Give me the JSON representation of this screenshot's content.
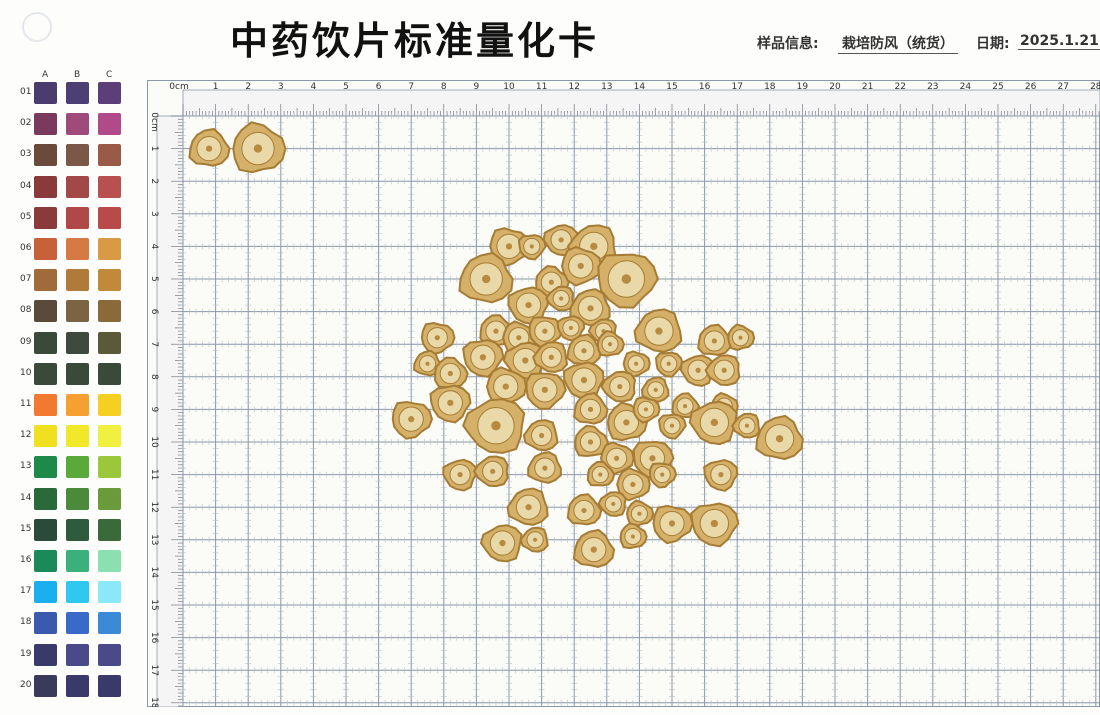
{
  "header": {
    "title": "中药饮片标准量化卡",
    "info_label": "样品信息:",
    "info_value": "栽培防风（统货）",
    "date_label": "日期:",
    "date_value": "2025.1.21"
  },
  "color_card": {
    "columns": [
      "A",
      "B",
      "C"
    ],
    "rows": [
      {
        "num": "01",
        "colors": [
          "#4a3d6e",
          "#4b3f74",
          "#5c3f78"
        ]
      },
      {
        "num": "02",
        "colors": [
          "#7a3a5e",
          "#a04a7c",
          "#b04a88"
        ]
      },
      {
        "num": "03",
        "colors": [
          "#6a4a3a",
          "#7a5848",
          "#9a5a48"
        ]
      },
      {
        "num": "04",
        "colors": [
          "#8a3a3a",
          "#a24848",
          "#b85050"
        ]
      },
      {
        "num": "05",
        "colors": [
          "#8a3a3a",
          "#b04848",
          "#b84a4a"
        ]
      },
      {
        "num": "06",
        "colors": [
          "#c8603a",
          "#d67a44",
          "#d89a44"
        ]
      },
      {
        "num": "07",
        "colors": [
          "#a06a3a",
          "#b07a3a",
          "#c08a3a"
        ]
      },
      {
        "num": "08",
        "colors": [
          "#5a4a3a",
          "#7a6444",
          "#8a6a3a"
        ]
      },
      {
        "num": "09",
        "colors": [
          "#3a4a3a",
          "#3e4a3e",
          "#5a5a3a"
        ]
      },
      {
        "num": "10",
        "colors": [
          "#3a4a3a",
          "#3a4a3a",
          "#3a4a3a"
        ]
      },
      {
        "num": "11",
        "colors": [
          "#f27a30",
          "#f5a030",
          "#f5d020"
        ]
      },
      {
        "num": "12",
        "colors": [
          "#f0e020",
          "#f0e828",
          "#f0f040"
        ]
      },
      {
        "num": "13",
        "colors": [
          "#1e8a4a",
          "#5aaa3a",
          "#9ac83a"
        ]
      },
      {
        "num": "14",
        "colors": [
          "#2a6a3a",
          "#4a8a3a",
          "#6a9a3a"
        ]
      },
      {
        "num": "15",
        "colors": [
          "#2a4a3a",
          "#2e5a3e",
          "#3a6a3a"
        ]
      },
      {
        "num": "16",
        "colors": [
          "#1a8a5a",
          "#3ab07a",
          "#8ae0b0"
        ]
      },
      {
        "num": "17",
        "colors": [
          "#1ab0f0",
          "#30c8f0",
          "#8ae8f8"
        ]
      },
      {
        "num": "18",
        "colors": [
          "#3a5ab0",
          "#3a6ac8",
          "#3a8ad8"
        ]
      },
      {
        "num": "19",
        "colors": [
          "#3a3a6a",
          "#4a4a8a",
          "#4a4a8a"
        ]
      },
      {
        "num": "20",
        "colors": [
          "#3a3a5a",
          "#3a3a6a",
          "#3a3a6a"
        ]
      }
    ]
  },
  "ruler": {
    "x_labels": [
      "0cm",
      "1",
      "2",
      "3",
      "4",
      "5",
      "6",
      "7",
      "8",
      "9",
      "10",
      "11",
      "12",
      "13",
      "14",
      "15",
      "16",
      "17",
      "18",
      "19",
      "20",
      "21",
      "22",
      "23",
      "24",
      "25",
      "26",
      "27",
      "28"
    ],
    "y_labels": [
      "0cm",
      "1",
      "2",
      "3",
      "4",
      "5",
      "6",
      "7",
      "8",
      "9",
      "10",
      "11",
      "12",
      "13",
      "14",
      "15",
      "16",
      "17",
      "18"
    ]
  },
  "colors": {
    "grid_line": "#8a98a8",
    "grid_fine": "#b8c0c8",
    "slice_fill": "#d4b068",
    "slice_edge": "#a67c35",
    "slice_core": "#e9d8a8"
  },
  "slices_cm": [
    [
      0.8,
      1.0,
      0.6
    ],
    [
      2.3,
      1.0,
      0.8
    ],
    [
      10.0,
      4.0,
      0.6
    ],
    [
      10.7,
      4.0,
      0.4
    ],
    [
      11.6,
      3.8,
      0.5
    ],
    [
      12.6,
      4.0,
      0.7
    ],
    [
      9.3,
      5.0,
      0.8
    ],
    [
      11.3,
      5.1,
      0.5
    ],
    [
      12.2,
      4.6,
      0.6
    ],
    [
      13.6,
      5.0,
      0.9
    ],
    [
      10.6,
      5.8,
      0.6
    ],
    [
      11.6,
      5.6,
      0.4
    ],
    [
      12.5,
      5.9,
      0.6
    ],
    [
      9.6,
      6.6,
      0.5
    ],
    [
      10.3,
      6.8,
      0.5
    ],
    [
      11.1,
      6.6,
      0.5
    ],
    [
      11.9,
      6.5,
      0.4
    ],
    [
      12.9,
      6.6,
      0.4
    ],
    [
      14.6,
      6.6,
      0.7
    ],
    [
      16.3,
      6.9,
      0.5
    ],
    [
      17.1,
      6.8,
      0.4
    ],
    [
      7.8,
      6.8,
      0.5
    ],
    [
      9.2,
      7.4,
      0.6
    ],
    [
      10.5,
      7.5,
      0.6
    ],
    [
      11.3,
      7.4,
      0.5
    ],
    [
      12.3,
      7.2,
      0.5
    ],
    [
      13.1,
      7.0,
      0.4
    ],
    [
      13.9,
      7.6,
      0.4
    ],
    [
      14.9,
      7.6,
      0.4
    ],
    [
      15.8,
      7.8,
      0.5
    ],
    [
      16.6,
      7.8,
      0.5
    ],
    [
      7.5,
      7.6,
      0.4
    ],
    [
      8.2,
      7.9,
      0.5
    ],
    [
      9.9,
      8.3,
      0.6
    ],
    [
      11.1,
      8.4,
      0.6
    ],
    [
      12.3,
      8.1,
      0.6
    ],
    [
      13.4,
      8.3,
      0.5
    ],
    [
      14.5,
      8.4,
      0.4
    ],
    [
      15.4,
      8.9,
      0.4
    ],
    [
      16.6,
      8.9,
      0.4
    ],
    [
      7.0,
      9.3,
      0.6
    ],
    [
      8.2,
      8.8,
      0.6
    ],
    [
      9.6,
      9.5,
      0.9
    ],
    [
      11.0,
      9.8,
      0.5
    ],
    [
      12.5,
      9.0,
      0.5
    ],
    [
      13.6,
      9.4,
      0.6
    ],
    [
      14.2,
      9.0,
      0.4
    ],
    [
      15.0,
      9.5,
      0.4
    ],
    [
      16.3,
      9.4,
      0.7
    ],
    [
      17.3,
      9.5,
      0.4
    ],
    [
      18.3,
      9.9,
      0.7
    ],
    [
      12.5,
      10.0,
      0.5
    ],
    [
      13.3,
      10.5,
      0.5
    ],
    [
      14.4,
      10.5,
      0.6
    ],
    [
      8.5,
      11.0,
      0.5
    ],
    [
      9.5,
      10.9,
      0.5
    ],
    [
      11.1,
      10.8,
      0.5
    ],
    [
      12.8,
      11.0,
      0.4
    ],
    [
      13.8,
      11.3,
      0.5
    ],
    [
      14.7,
      11.0,
      0.4
    ],
    [
      16.5,
      11.0,
      0.5
    ],
    [
      13.2,
      11.9,
      0.4
    ],
    [
      10.6,
      12.0,
      0.6
    ],
    [
      12.3,
      12.1,
      0.5
    ],
    [
      14.0,
      12.2,
      0.4
    ],
    [
      15.0,
      12.5,
      0.6
    ],
    [
      16.3,
      12.5,
      0.7
    ],
    [
      9.8,
      13.1,
      0.6
    ],
    [
      10.8,
      13.0,
      0.4
    ],
    [
      12.6,
      13.3,
      0.6
    ],
    [
      13.8,
      12.9,
      0.4
    ]
  ]
}
